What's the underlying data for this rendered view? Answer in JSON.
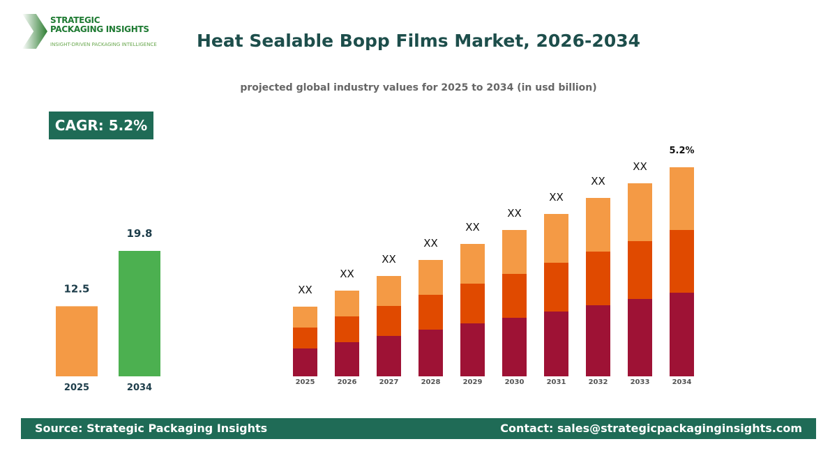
{
  "logo": {
    "line1": "STRATEGIC",
    "line2": "PACKAGING INSIGHTS",
    "tagline": "INSIGHT-DRIVEN PACKAGING INTELLIGENCE"
  },
  "title": "Heat Sealable Bopp Films Market, 2026-2034",
  "subtitle": "projected global industry values for 2025 to 2034 (in usd billion)",
  "cagr_label": "CAGR: 5.2%",
  "footer": {
    "source": "Source: Strategic Packaging Insights",
    "contact": "Contact: sales@strategicpackaginginsights.com"
  },
  "colors": {
    "teal": "#1f6b56",
    "orange": "#f49a45",
    "green": "#4cb050",
    "seg_bottom": "#9e1235",
    "seg_middle": "#e04a00",
    "seg_top": "#f49a45"
  },
  "chart_data": [
    {
      "type": "bar",
      "categories": [
        "2025",
        "2034"
      ],
      "values": [
        12.5,
        19.8
      ],
      "data_labels": [
        "12.5",
        "19.8"
      ],
      "colors": [
        "#f49a45",
        "#4cb050"
      ],
      "grid": false
    },
    {
      "type": "bar",
      "stacked": true,
      "categories": [
        "2025",
        "2026",
        "2027",
        "2028",
        "2029",
        "2030",
        "2031",
        "2032",
        "2033",
        "2034"
      ],
      "series": [
        {
          "values": [
            40,
            49,
            58,
            67,
            76,
            84,
            93,
            102,
            111,
            120
          ],
          "color": "#9e1235"
        },
        {
          "values": [
            30,
            37,
            43,
            50,
            57,
            63,
            70,
            77,
            83,
            90
          ],
          "color": "#e04a00"
        },
        {
          "values": [
            30,
            37,
            43,
            50,
            57,
            63,
            70,
            77,
            83,
            90
          ],
          "color": "#f49a45"
        }
      ],
      "data_labels": [
        "XX",
        "XX",
        "XX",
        "XX",
        "XX",
        "XX",
        "XX",
        "XX",
        "XX",
        "5.2%"
      ],
      "grid": false
    }
  ]
}
